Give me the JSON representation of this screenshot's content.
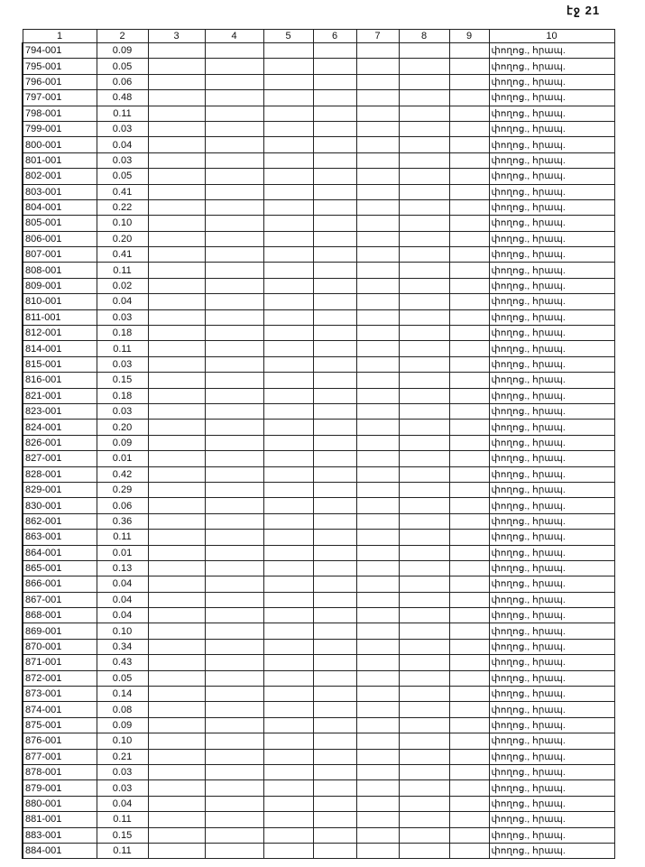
{
  "page_label": "էջ 21",
  "columns": [
    "1",
    "2",
    "3",
    "4",
    "5",
    "6",
    "7",
    "8",
    "9",
    "10"
  ],
  "default_col10": "փողոց., հրապ.",
  "rows": [
    [
      "794-001",
      "0.09"
    ],
    [
      "795-001",
      "0.05"
    ],
    [
      "796-001",
      "0.06"
    ],
    [
      "797-001",
      "0.48"
    ],
    [
      "798-001",
      "0.11"
    ],
    [
      "799-001",
      "0.03"
    ],
    [
      "800-001",
      "0.04"
    ],
    [
      "801-001",
      "0.03"
    ],
    [
      "802-001",
      "0.05"
    ],
    [
      "803-001",
      "0.41"
    ],
    [
      "804-001",
      "0.22"
    ],
    [
      "805-001",
      "0.10"
    ],
    [
      "806-001",
      "0.20"
    ],
    [
      "807-001",
      "0.41"
    ],
    [
      "808-001",
      "0.11"
    ],
    [
      "809-001",
      "0.02"
    ],
    [
      "810-001",
      "0.04"
    ],
    [
      "811-001",
      "0.03"
    ],
    [
      "812-001",
      "0.18"
    ],
    [
      "814-001",
      "0.11"
    ],
    [
      "815-001",
      "0.03"
    ],
    [
      "816-001",
      "0.15"
    ],
    [
      "821-001",
      "0.18"
    ],
    [
      "823-001",
      "0.03"
    ],
    [
      "824-001",
      "0.20"
    ],
    [
      "826-001",
      "0.09"
    ],
    [
      "827-001",
      "0.01"
    ],
    [
      "828-001",
      "0.42"
    ],
    [
      "829-001",
      "0.29"
    ],
    [
      "830-001",
      "0.06"
    ],
    [
      "862-001",
      "0.36"
    ],
    [
      "863-001",
      "0.11"
    ],
    [
      "864-001",
      "0.01"
    ],
    [
      "865-001",
      "0.13"
    ],
    [
      "866-001",
      "0.04"
    ],
    [
      "867-001",
      "0.04"
    ],
    [
      "868-001",
      "0.04"
    ],
    [
      "869-001",
      "0.10"
    ],
    [
      "870-001",
      "0.34"
    ],
    [
      "871-001",
      "0.43"
    ],
    [
      "872-001",
      "0.05"
    ],
    [
      "873-001",
      "0.14"
    ],
    [
      "874-001",
      "0.08"
    ],
    [
      "875-001",
      "0.09"
    ],
    [
      "876-001",
      "0.10"
    ],
    [
      "877-001",
      "0.21"
    ],
    [
      "878-001",
      "0.03"
    ],
    [
      "879-001",
      "0.03"
    ],
    [
      "880-001",
      "0.04"
    ],
    [
      "881-001",
      "0.11"
    ],
    [
      "883-001",
      "0.15"
    ],
    [
      "884-001",
      "0.11"
    ]
  ]
}
